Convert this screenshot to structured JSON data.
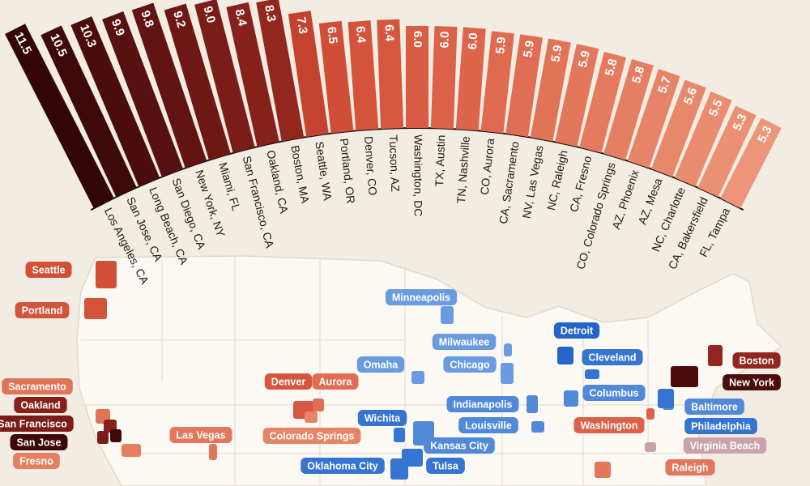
{
  "chart_data": {
    "type": "radial-bar",
    "categories": [
      "Los Angeles, CA",
      "San Jose, CA",
      "Long Beach, CA",
      "San Diego, CA",
      "New York, NY",
      "Miami, FL",
      "San Francisco, CA",
      "Oakland, CA",
      "Boston, MA",
      "Seattle, WA",
      "Portland, OR",
      "Denver, CO",
      "Tucson, AZ",
      "Washington, DC",
      "TX, Austin",
      "TN, Nashville",
      "CO, Aurora",
      "CA, Sacramento",
      "NV, Las Vegas",
      "NC, Raleigh",
      "CA, Fresno",
      "CO, Colorado Springs",
      "AZ, Phoenix",
      "AZ, Mesa",
      "NC, Charlotte",
      "CA, Bakersfield",
      "FL, Tampa"
    ],
    "values": [
      11.5,
      10.5,
      10.3,
      9.9,
      9.8,
      9.2,
      9.0,
      8.4,
      8.3,
      7.3,
      6.5,
      6.4,
      6.4,
      6.0,
      6.0,
      6.0,
      5.9,
      5.9,
      5.9,
      5.9,
      5.8,
      5.8,
      5.7,
      5.6,
      5.5,
      5.3,
      5.3
    ],
    "value_labels": [
      "11.5",
      "10.5",
      "10.3",
      "9.9",
      "9.8",
      "9.2",
      "9.0",
      "8.4",
      "8.3",
      "7.3",
      "6.5",
      "6.4",
      "6.4",
      "6.0",
      "6.0",
      "6.0",
      "5.9",
      "5.9",
      "5.9",
      "5.9",
      "5.8",
      "5.8",
      "5.7",
      "5.6",
      "5.5",
      "5.3",
      "5.3"
    ],
    "colors": [
      "#330606",
      "#3e0909",
      "#4a0d0c",
      "#561110",
      "#621412",
      "#6e1815",
      "#7a1c18",
      "#86211b",
      "#93271e",
      "#c4432e",
      "#d04e37",
      "#d4533b",
      "#d6573f",
      "#d95c44",
      "#db6148",
      "#dd654c",
      "#df6a50",
      "#e06e54",
      "#e17357",
      "#e3775b",
      "#e47b5f",
      "#e57f63",
      "#e68467",
      "#e8886b",
      "#e98c6f",
      "#ea9073",
      "#ec957a"
    ]
  },
  "map": {
    "cities": [
      {
        "label": "Seattle",
        "color": "#d24f38"
      },
      {
        "label": "Portland",
        "color": "#d4533b"
      },
      {
        "label": "Sacramento",
        "color": "#e17357"
      },
      {
        "label": "Oakland",
        "color": "#86211b"
      },
      {
        "label": "San Francisco",
        "color": "#7a1c18"
      },
      {
        "label": "San Jose",
        "color": "#3e0909"
      },
      {
        "label": "Fresno",
        "color": "#e57f63"
      },
      {
        "label": "Las Vegas",
        "color": "#e3775b"
      },
      {
        "label": "Denver",
        "color": "#d6573f"
      },
      {
        "label": "Aurora",
        "color": "#e06e54"
      },
      {
        "label": "Colorado Springs",
        "color": "#e68467"
      },
      {
        "label": "Minneapolis",
        "color": "#6a9be0"
      },
      {
        "label": "Milwaukee",
        "color": "#6a9be0"
      },
      {
        "label": "Chicago",
        "color": "#6a9be0"
      },
      {
        "label": "Omaha",
        "color": "#6a9be0"
      },
      {
        "label": "Detroit",
        "color": "#2565c9"
      },
      {
        "label": "Cleveland",
        "color": "#3574d1"
      },
      {
        "label": "Columbus",
        "color": "#5189d9"
      },
      {
        "label": "Indianapolis",
        "color": "#5189d9"
      },
      {
        "label": "Louisville",
        "color": "#5189d9"
      },
      {
        "label": "Wichita",
        "color": "#3574d1"
      },
      {
        "label": "Kansas City",
        "color": "#5189d9"
      },
      {
        "label": "Oklahoma City",
        "color": "#3574d1"
      },
      {
        "label": "Tulsa",
        "color": "#3574d1"
      },
      {
        "label": "Boston",
        "color": "#93271e"
      },
      {
        "label": "New York",
        "color": "#4a0d0c"
      },
      {
        "label": "Baltimore",
        "color": "#5189d9"
      },
      {
        "label": "Philadelphia",
        "color": "#3574d1"
      },
      {
        "label": "Washington",
        "color": "#db6148"
      },
      {
        "label": "Virginia Beach",
        "color": "#c9a2aa"
      },
      {
        "label": "Raleigh",
        "color": "#e3775b"
      }
    ]
  }
}
